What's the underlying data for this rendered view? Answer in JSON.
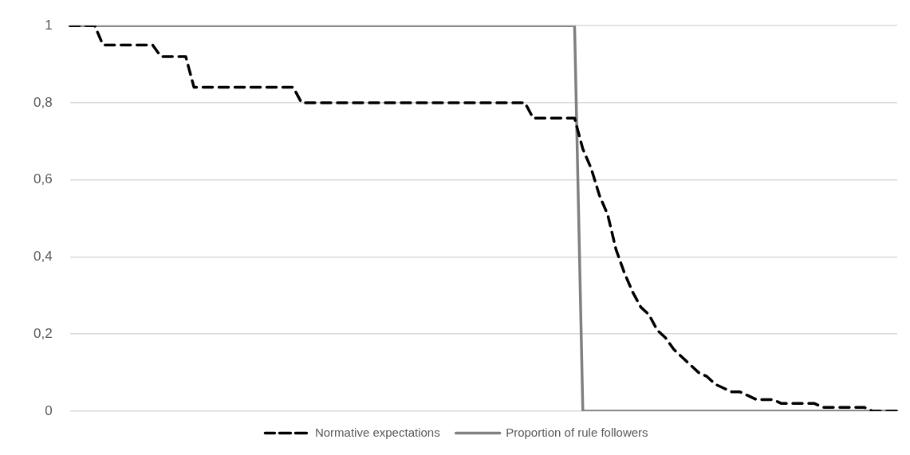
{
  "chart_data": {
    "type": "line",
    "categories": [
      null,
      null,
      null,
      null,
      null,
      null,
      null,
      null,
      null,
      null,
      null,
      null,
      null,
      null,
      null,
      null,
      null,
      null,
      null,
      null,
      null,
      null,
      null,
      null,
      null,
      null,
      null,
      null,
      null,
      null,
      null,
      null,
      null,
      null,
      null,
      null,
      null,
      null,
      null,
      null,
      null,
      null,
      null,
      null,
      null,
      null,
      null,
      null,
      null,
      null,
      null,
      null,
      null,
      null,
      null,
      null,
      null,
      null,
      null,
      null,
      null,
      null,
      null,
      null,
      null,
      null,
      null,
      null,
      null,
      null,
      null,
      null,
      null,
      null,
      null,
      null,
      null,
      null,
      null,
      null,
      null,
      null,
      null,
      null,
      null,
      null,
      null,
      null,
      null,
      null,
      null,
      null,
      null,
      null,
      null,
      null,
      null,
      null,
      null,
      null,
      null
    ],
    "series": [
      {
        "name": "Normative expectations",
        "color": "#000000",
        "line_style": "dashed",
        "values": [
          1,
          1,
          1,
          1,
          0.95,
          0.95,
          0.95,
          0.95,
          0.95,
          0.95,
          0.95,
          0.92,
          0.92,
          0.92,
          0.92,
          0.84,
          0.84,
          0.84,
          0.84,
          0.84,
          0.84,
          0.84,
          0.84,
          0.84,
          0.84,
          0.84,
          0.84,
          0.84,
          0.8,
          0.8,
          0.8,
          0.8,
          0.8,
          0.8,
          0.8,
          0.8,
          0.8,
          0.8,
          0.8,
          0.8,
          0.8,
          0.8,
          0.8,
          0.8,
          0.8,
          0.8,
          0.8,
          0.8,
          0.8,
          0.8,
          0.8,
          0.8,
          0.8,
          0.8,
          0.8,
          0.8,
          0.76,
          0.76,
          0.76,
          0.76,
          0.76,
          0.76,
          0.68,
          0.63,
          0.56,
          0.51,
          0.42,
          0.36,
          0.31,
          0.27,
          0.25,
          0.21,
          0.19,
          0.16,
          0.14,
          0.12,
          0.1,
          0.09,
          0.07,
          0.06,
          0.05,
          0.05,
          0.04,
          0.03,
          0.03,
          0.03,
          0.02,
          0.02,
          0.02,
          0.02,
          0.02,
          0.01,
          0.01,
          0.01,
          0.01,
          0.01,
          0.01,
          0,
          0,
          0,
          0
        ]
      },
      {
        "name": "Proportion of rule followers",
        "color": "#808080",
        "line_style": "solid",
        "values": [
          1,
          1,
          1,
          1,
          1,
          1,
          1,
          1,
          1,
          1,
          1,
          1,
          1,
          1,
          1,
          1,
          1,
          1,
          1,
          1,
          1,
          1,
          1,
          1,
          1,
          1,
          1,
          1,
          1,
          1,
          1,
          1,
          1,
          1,
          1,
          1,
          1,
          1,
          1,
          1,
          1,
          1,
          1,
          1,
          1,
          1,
          1,
          1,
          1,
          1,
          1,
          1,
          1,
          1,
          1,
          1,
          1,
          1,
          1,
          1,
          1,
          1,
          0,
          0,
          0,
          0,
          0,
          0,
          0,
          0,
          0,
          0,
          0,
          0,
          0,
          0,
          0,
          0,
          0,
          0,
          0,
          0,
          0,
          0,
          0,
          0,
          0,
          0,
          0,
          0,
          0,
          0,
          0,
          0,
          0,
          0,
          0,
          0,
          0,
          0,
          0
        ]
      }
    ],
    "ylim": [
      0,
      1
    ],
    "yticks": [
      {
        "value": 0,
        "label": "0"
      },
      {
        "value": 0.2,
        "label": "0,2"
      },
      {
        "value": 0.4,
        "label": "0,4"
      },
      {
        "value": 0.6,
        "label": "0,6"
      },
      {
        "value": 0.8,
        "label": "0,8"
      },
      {
        "value": 1,
        "label": "1"
      }
    ],
    "grid": "y",
    "legend": "bottom",
    "marker": "none",
    "tick_labels": "y"
  }
}
